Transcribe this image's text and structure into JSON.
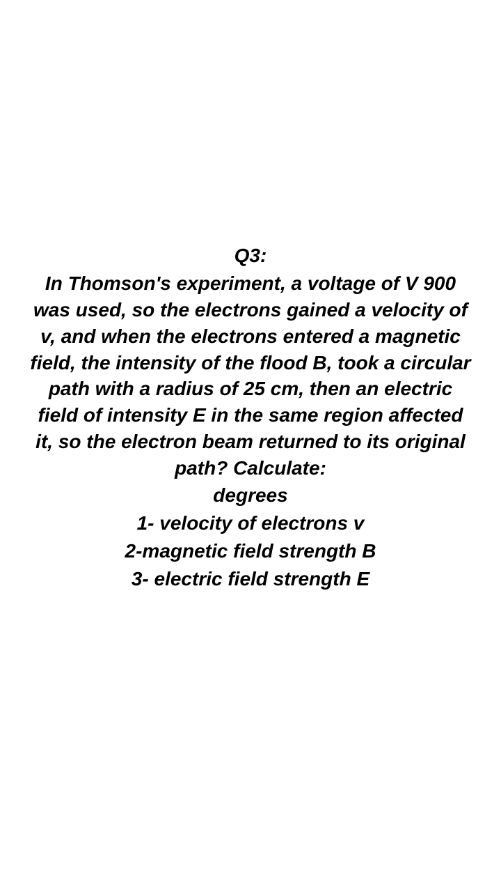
{
  "question": {
    "label": "Q3:",
    "body": "In Thomson's experiment, a voltage of V 900 was used, so the electrons gained a velocity of v, and when the electrons entered a magnetic field, the intensity of the flood B, took a circular path with a radius of 25 cm, then an electric field of intensity E in the same region affected it, so the electron beam returned to its original path?  Calculate:",
    "sub_label": "degrees",
    "items": [
      "1- velocity of electrons v",
      "2-magnetic field strength B",
      "3- electric field strength E"
    ]
  },
  "style": {
    "text_color": "#000000",
    "background_color": "#ffffff",
    "font_size_pt": 21,
    "font_weight": "700",
    "font_style": "italic"
  }
}
